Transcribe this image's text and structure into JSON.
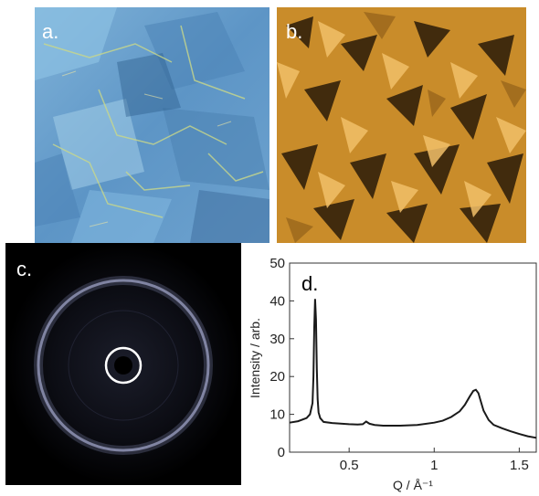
{
  "panels": {
    "a": {
      "letter": "a."
    },
    "b": {
      "letter": "b."
    },
    "c": {
      "letter": "c."
    },
    "d": {
      "letter": "d."
    }
  },
  "chart_data": {
    "type": "line",
    "xlabel": "Q / Å⁻¹",
    "ylabel": "Intensity / arb.",
    "xlim": [
      0.15,
      1.6
    ],
    "ylim": [
      0,
      50
    ],
    "xticks": [
      0.5,
      1,
      1.5
    ],
    "xtick_labels": [
      "0.5",
      "1",
      "1.5"
    ],
    "yticks": [
      0,
      10,
      20,
      30,
      40,
      50
    ],
    "ytick_labels": [
      "0",
      "10",
      "20",
      "30",
      "40",
      "50"
    ],
    "grid": false,
    "series": [
      {
        "color": "#1a1a1a",
        "x": [
          0.15,
          0.2,
          0.25,
          0.27,
          0.285,
          0.29,
          0.295,
          0.3,
          0.305,
          0.31,
          0.315,
          0.32,
          0.33,
          0.35,
          0.4,
          0.5,
          0.55,
          0.58,
          0.6,
          0.62,
          0.65,
          0.7,
          0.8,
          0.9,
          1.0,
          1.05,
          1.1,
          1.15,
          1.18,
          1.21,
          1.23,
          1.245,
          1.26,
          1.27,
          1.29,
          1.32,
          1.35,
          1.4,
          1.45,
          1.5,
          1.55,
          1.6
        ],
        "y": [
          7.8,
          8.2,
          9.0,
          10.0,
          13.0,
          20.0,
          33.0,
          40.5,
          35.0,
          22.0,
          14.0,
          10.5,
          9.0,
          8.0,
          7.7,
          7.4,
          7.3,
          7.4,
          8.1,
          7.5,
          7.2,
          7.0,
          7.0,
          7.2,
          7.8,
          8.3,
          9.3,
          10.8,
          12.5,
          14.8,
          16.2,
          16.5,
          15.6,
          14.0,
          11.0,
          8.5,
          7.2,
          6.3,
          5.5,
          4.8,
          4.2,
          3.8
        ]
      }
    ]
  }
}
